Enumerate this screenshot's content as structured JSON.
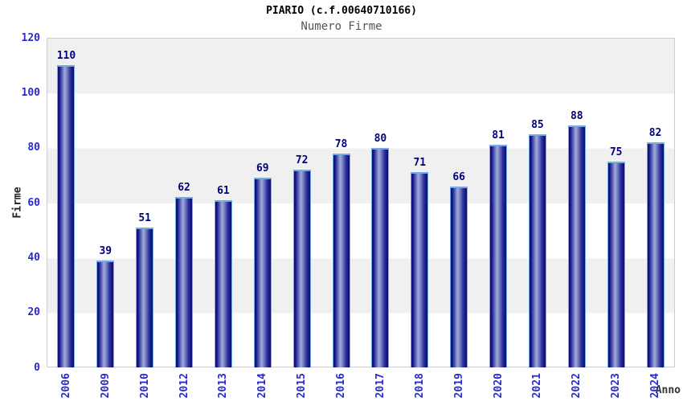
{
  "header": {
    "title": "PIARIO (c.f.00640710166)",
    "subtitle": "Numero Firme"
  },
  "chart_data": {
    "type": "bar",
    "title": "PIARIO (c.f.00640710166)",
    "subtitle": "Numero Firme",
    "categories": [
      "2006",
      "2009",
      "2010",
      "2012",
      "2013",
      "2014",
      "2015",
      "2016",
      "2017",
      "2018",
      "2019",
      "2020",
      "2021",
      "2022",
      "2023",
      "2024"
    ],
    "values": [
      110,
      39,
      51,
      62,
      61,
      69,
      72,
      78,
      80,
      71,
      66,
      81,
      85,
      88,
      75,
      82
    ],
    "xlabel": "Anno",
    "ylabel": "Firme",
    "ylim": [
      0,
      120
    ],
    "yticks": [
      0,
      20,
      40,
      60,
      80,
      100,
      120
    ],
    "grid": "horizontal-bands-every-20",
    "legend_position": "none",
    "colors": {
      "bar_dark": "#0a0a73",
      "bar_mid": "#6b74bd",
      "bar_light": "#a3abdc",
      "bar_outline": "#74ace6",
      "value_label": "#00007e",
      "tick_label": "#2a2ad0",
      "band_gray": "#f0f0f0",
      "band_white": "#ffffff",
      "plot_border": "#cccccc",
      "title_color": "#000000",
      "subtitle_color": "#555555",
      "axis_title_color": "#333333"
    }
  }
}
